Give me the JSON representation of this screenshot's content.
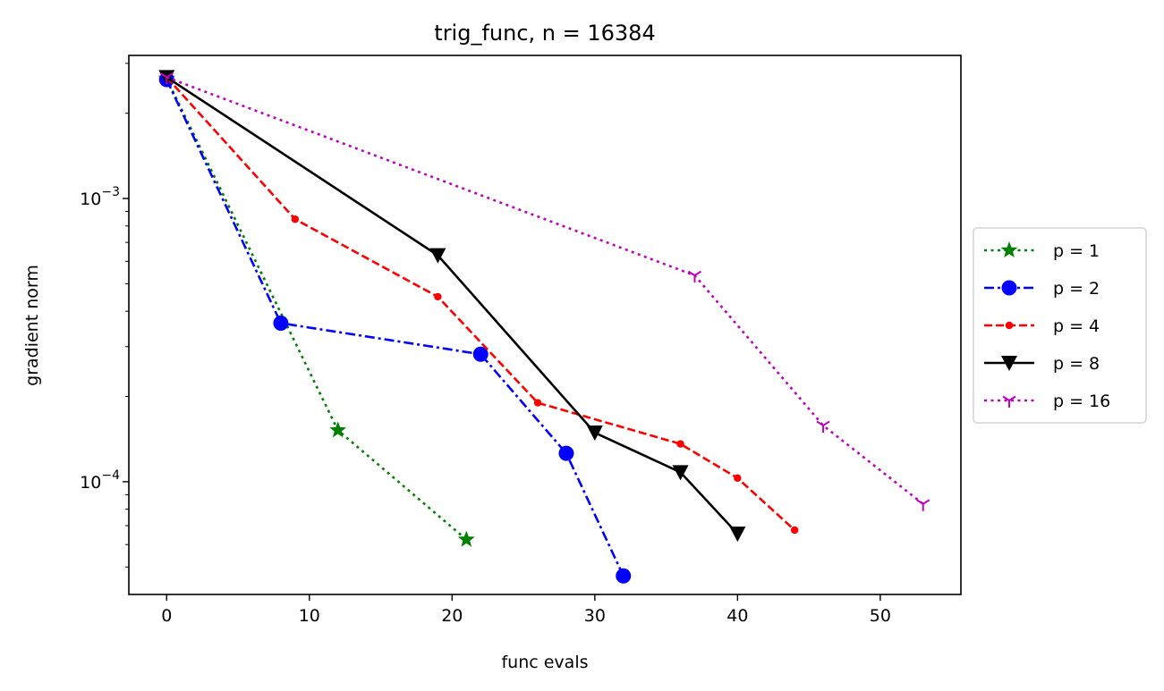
{
  "chart_data": {
    "type": "line",
    "title": "trig_func, n = 16384",
    "xlabel": "func evals",
    "ylabel": "gradient norm",
    "xlim": [
      -2.65,
      55.65
    ],
    "ylim": [
      4e-05,
      0.0032
    ],
    "yscale": "log",
    "xticks": [
      0,
      10,
      20,
      30,
      40,
      50
    ],
    "xtick_labels": [
      "0",
      "10",
      "20",
      "30",
      "40",
      "50"
    ],
    "yticks_major": [
      {
        "base": "10",
        "exp": "−3",
        "value": 0.001
      },
      {
        "base": "10",
        "exp": "−4",
        "value": 0.0001
      }
    ],
    "grid": false,
    "legend_position": "right",
    "series": [
      {
        "name": "p = 1",
        "color": "#008000",
        "line": "dotted",
        "marker": "star",
        "x": [
          0,
          12,
          21
        ],
        "y": [
          0.00265,
          0.000152,
          6.25e-05
        ]
      },
      {
        "name": "p = 2",
        "color": "#0000ff",
        "line": "dashdot",
        "marker": "circle",
        "x": [
          0,
          8,
          22,
          28,
          32
        ],
        "y": [
          0.00263,
          0.000363,
          0.000282,
          0.000126,
          4.65e-05
        ]
      },
      {
        "name": "p = 4",
        "color": "#ff0000",
        "line": "dashed",
        "marker": "point",
        "x": [
          0,
          9,
          19,
          26,
          36,
          40,
          44
        ],
        "y": [
          0.00268,
          0.000845,
          0.00045,
          0.00019,
          0.000136,
          0.000103,
          6.75e-05
        ]
      },
      {
        "name": "p = 8",
        "color": "#000000",
        "line": "solid",
        "marker": "triangle-down",
        "x": [
          0,
          19,
          30,
          36,
          40
        ],
        "y": [
          0.00268,
          0.00063,
          0.000149,
          0.000108,
          6.55e-05
        ]
      },
      {
        "name": "p = 16",
        "color": "#bf00bf",
        "line": "dotted",
        "marker": "tri-down",
        "x": [
          0,
          37,
          46,
          53
        ],
        "y": [
          0.00268,
          0.000535,
          0.000158,
          8.35e-05
        ]
      }
    ]
  }
}
